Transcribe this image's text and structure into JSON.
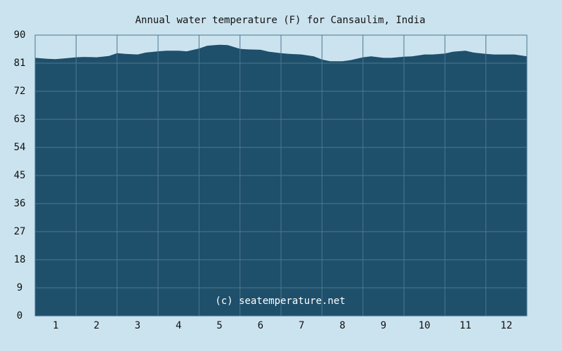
{
  "chart_data": {
    "type": "area",
    "title": "Annual water temperature (F) for Cansaulim, India",
    "watermark": "(c) seatemperature.net",
    "xlabel": "",
    "ylabel": "",
    "ylim": [
      0,
      90
    ],
    "xlim": [
      0.5,
      12.5
    ],
    "grid": true,
    "y_ticks": [
      0,
      9,
      18,
      27,
      36,
      45,
      54,
      63,
      72,
      81,
      90
    ],
    "x_ticks": [
      1,
      2,
      3,
      4,
      5,
      6,
      7,
      8,
      9,
      10,
      11,
      12
    ],
    "colors": {
      "background": "#cbe3ef",
      "area_fill": "#1e4f6b",
      "grid_line": "#4d7791",
      "text": "#111111",
      "watermark_text": "#ffffff"
    },
    "series": [
      {
        "x": [
          0.5,
          0.8,
          1.0,
          1.2,
          1.5,
          1.7,
          2.0,
          2.3,
          2.5,
          2.7,
          3.0,
          3.2,
          3.5,
          3.7,
          4.0,
          4.2,
          4.5,
          4.7,
          5.0,
          5.2,
          5.5,
          5.7,
          6.0,
          6.2,
          6.5,
          6.7,
          7.0,
          7.3,
          7.5,
          7.7,
          8.0,
          8.2,
          8.5,
          8.7,
          9.0,
          9.2,
          9.5,
          9.7,
          10.0,
          10.2,
          10.5,
          10.7,
          11.0,
          11.2,
          11.5,
          11.7,
          12.0,
          12.2,
          12.5
        ],
        "values": [
          82.7,
          82.4,
          82.3,
          82.5,
          82.9,
          83.0,
          82.9,
          83.3,
          84.2,
          84.0,
          83.8,
          84.4,
          84.8,
          85.0,
          85.0,
          84.8,
          85.7,
          86.6,
          86.9,
          86.8,
          85.6,
          85.4,
          85.3,
          84.7,
          84.2,
          84.0,
          83.8,
          83.2,
          82.2,
          81.6,
          81.6,
          82.0,
          82.9,
          83.2,
          82.7,
          82.7,
          83.1,
          83.2,
          83.8,
          83.8,
          84.1,
          84.7,
          85.0,
          84.4,
          84.0,
          83.8,
          83.8,
          83.8,
          83.2
        ]
      }
    ]
  }
}
